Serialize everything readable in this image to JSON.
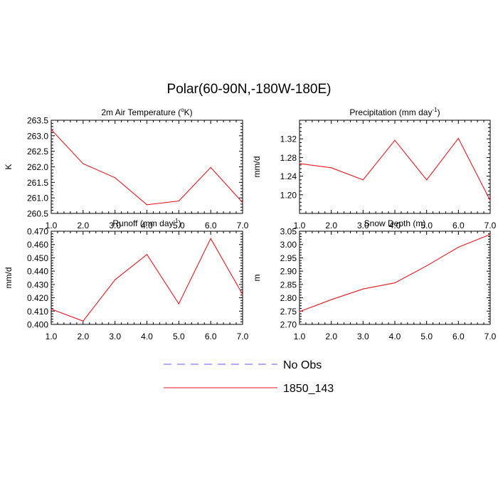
{
  "title": "Polar(60-90N,-180W-180E)",
  "legend": [
    {
      "label": "No Obs",
      "color": "#5b5bff",
      "style": "dashed"
    },
    {
      "label": "1850_143",
      "color": "#e8171d",
      "style": "solid"
    }
  ],
  "chart_data": [
    {
      "type": "line",
      "title": "2m Air Temperature (",
      "title_sup": "o",
      "title_tail": "K)",
      "ylabel": "K",
      "x": [
        1,
        2,
        3,
        4,
        5,
        6,
        7
      ],
      "xlim": [
        1,
        7
      ],
      "ylim": [
        260.5,
        263.5
      ],
      "xticks": [
        "1.0",
        "2.0",
        "3.0",
        "4.0",
        "5.0",
        "6.0",
        "7.0"
      ],
      "yticks": [
        "260.5",
        "261.0",
        "261.5",
        "262.0",
        "262.5",
        "263.0",
        "263.5"
      ],
      "series": [
        {
          "name": "1850_143",
          "color": "#e8171d",
          "values": [
            263.2,
            262.1,
            261.65,
            260.78,
            260.9,
            261.98,
            260.85
          ]
        }
      ]
    },
    {
      "type": "line",
      "title": "Precipitation (mm day",
      "title_sup": "-1",
      "title_tail": ")",
      "ylabel": "mm/d",
      "x": [
        1,
        2,
        3,
        4,
        5,
        6,
        7
      ],
      "xlim": [
        1,
        7
      ],
      "ylim": [
        1.16,
        1.36
      ],
      "xticks": [
        "1.0",
        "2.0",
        "3.0",
        "4.0",
        "5.0",
        "6.0",
        "7.0"
      ],
      "yticks": [
        "1.20",
        "1.24",
        "1.28",
        "1.32"
      ],
      "series": [
        {
          "name": "1850_143",
          "color": "#e8171d",
          "values": [
            1.267,
            1.258,
            1.232,
            1.317,
            1.232,
            1.321,
            1.188
          ]
        }
      ]
    },
    {
      "type": "line",
      "title": "Runoff (mm day",
      "title_sup": "-1",
      "title_tail": ")",
      "ylabel": "mm/d",
      "x": [
        1,
        2,
        3,
        4,
        5,
        6,
        7
      ],
      "xlim": [
        1,
        7
      ],
      "ylim": [
        0.4,
        0.47
      ],
      "xticks": [
        "1.0",
        "2.0",
        "3.0",
        "4.0",
        "5.0",
        "6.0",
        "7.0"
      ],
      "yticks": [
        "0.400",
        "0.410",
        "0.420",
        "0.430",
        "0.440",
        "0.450",
        "0.460",
        "0.470"
      ],
      "series": [
        {
          "name": "1850_143",
          "color": "#e8171d",
          "values": [
            0.4115,
            0.4025,
            0.4335,
            0.4525,
            0.4155,
            0.4645,
            0.4225
          ]
        }
      ]
    },
    {
      "type": "line",
      "title": "Snow Depth (m)",
      "title_sup": "",
      "title_tail": "",
      "ylabel": "m",
      "x": [
        1,
        2,
        3,
        4,
        5,
        6,
        7
      ],
      "xlim": [
        1,
        7
      ],
      "ylim": [
        2.7,
        3.05
      ],
      "xticks": [
        "1.0",
        "2.0",
        "3.0",
        "4.0",
        "5.0",
        "6.0",
        "7.0"
      ],
      "yticks": [
        "2.70",
        "2.75",
        "2.80",
        "2.85",
        "2.90",
        "2.95",
        "3.00",
        "3.05"
      ],
      "series": [
        {
          "name": "1850_143",
          "color": "#e8171d",
          "values": [
            2.748,
            2.793,
            2.833,
            2.856,
            2.92,
            2.99,
            3.038
          ]
        }
      ]
    }
  ]
}
